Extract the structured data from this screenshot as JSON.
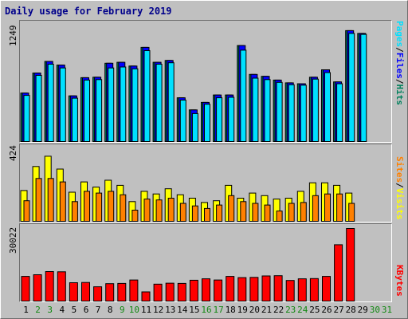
{
  "title": "Daily usage for February 2019",
  "colors": {
    "hits": "#00805c",
    "files": "#0000ff",
    "pages": "#00e0ff",
    "visits": "#ffff00",
    "sites": "#ff8000",
    "kbytes": "#ff0000",
    "weekend": "#118811",
    "weekday": "#000000",
    "title": "#00008b"
  },
  "days": [
    "1",
    "2",
    "3",
    "4",
    "5",
    "6",
    "7",
    "8",
    "9",
    "10",
    "11",
    "12",
    "13",
    "14",
    "15",
    "16",
    "17",
    "18",
    "19",
    "20",
    "21",
    "22",
    "23",
    "24",
    "25",
    "26",
    "27",
    "28",
    "29",
    "30",
    "31"
  ],
  "weekend_days": [
    "2",
    "3",
    "9",
    "10",
    "16",
    "17",
    "23",
    "24",
    "30",
    "31"
  ],
  "right_labels": {
    "top": [
      "Pages",
      "Files",
      "Hits"
    ],
    "mid": [
      "Sites",
      "Visits"
    ],
    "bot": [
      "KBytes"
    ]
  },
  "chart_data": [
    {
      "type": "bar",
      "name": "hits-files-pages",
      "max_label": "1249",
      "ylim": [
        0,
        1249
      ],
      "series": [
        {
          "name": "Hits",
          "values": [
            520,
            735,
            860,
            820,
            490,
            685,
            690,
            840,
            850,
            810,
            1010,
            850,
            870,
            470,
            340,
            420,
            500,
            500,
            1030,
            720,
            700,
            660,
            630,
            620,
            690,
            770,
            640,
            1190,
            1160,
            0,
            0
          ]
        },
        {
          "name": "Files",
          "values": [
            520,
            735,
            860,
            820,
            490,
            685,
            690,
            840,
            850,
            810,
            1010,
            850,
            870,
            470,
            340,
            420,
            500,
            500,
            1030,
            720,
            700,
            660,
            630,
            620,
            690,
            770,
            640,
            1190,
            1160,
            0,
            0
          ]
        },
        {
          "name": "Pages",
          "values": [
            495,
            710,
            830,
            790,
            465,
            660,
            665,
            790,
            800,
            780,
            975,
            830,
            845,
            445,
            300,
            400,
            470,
            475,
            980,
            680,
            665,
            635,
            610,
            605,
            670,
            740,
            620,
            1160,
            1150,
            0,
            0
          ]
        }
      ]
    },
    {
      "type": "bar",
      "name": "visits-sites",
      "max_label": "424",
      "ylim": [
        0,
        424
      ],
      "series": [
        {
          "name": "Visits",
          "values": [
            180,
            320,
            380,
            305,
            170,
            230,
            200,
            240,
            210,
            115,
            175,
            160,
            190,
            155,
            135,
            110,
            120,
            210,
            135,
            165,
            150,
            130,
            135,
            175,
            225,
            225,
            210,
            165,
            0,
            0,
            0
          ]
        },
        {
          "name": "Sites",
          "values": [
            120,
            250,
            250,
            230,
            115,
            175,
            165,
            175,
            155,
            65,
            130,
            125,
            135,
            105,
            90,
            75,
            95,
            150,
            115,
            105,
            95,
            60,
            105,
            110,
            150,
            160,
            160,
            105,
            0,
            0,
            0
          ]
        }
      ]
    },
    {
      "type": "bar",
      "name": "kbytes",
      "max_label": "30022",
      "ylim": [
        0,
        30022
      ],
      "series": [
        {
          "name": "KBytes",
          "values": [
            10200,
            10900,
            12200,
            12100,
            7600,
            7700,
            5900,
            7200,
            7300,
            8700,
            3800,
            7000,
            7400,
            7300,
            8600,
            9200,
            8700,
            10200,
            9700,
            9800,
            10400,
            10500,
            8500,
            9200,
            9300,
            10200,
            23300,
            31000,
            0,
            0,
            0
          ]
        }
      ]
    }
  ]
}
